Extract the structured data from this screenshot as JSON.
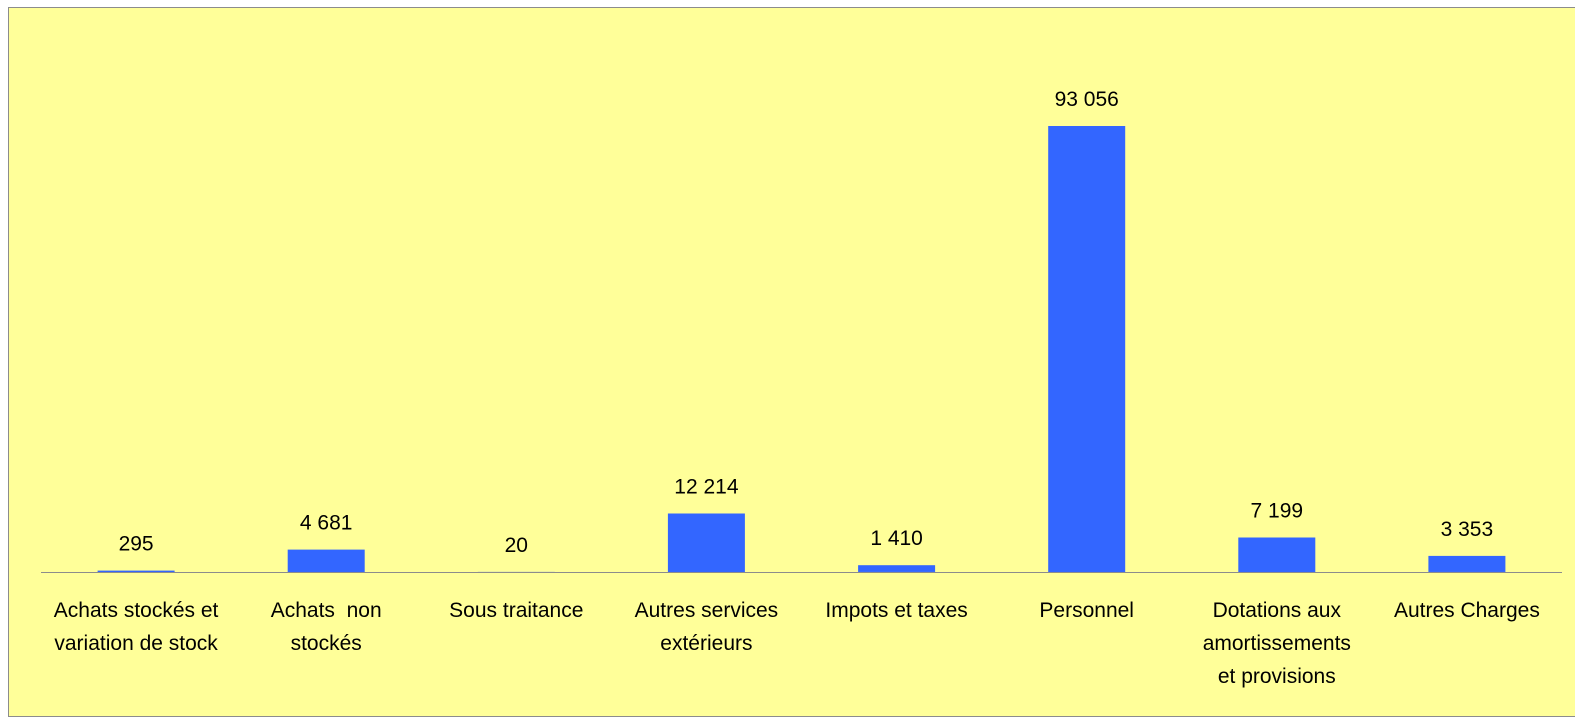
{
  "chart_data": {
    "type": "bar",
    "categories": [
      [
        "Achats stockés et",
        "variation de stock"
      ],
      [
        "Achats  non",
        "stockés"
      ],
      [
        "Sous traitance"
      ],
      [
        "Autres services",
        "extérieurs"
      ],
      [
        "Impots et taxes"
      ],
      [
        "Personnel"
      ],
      [
        "Dotations aux",
        "amortissements",
        "et provisions"
      ],
      [
        "Autres Charges"
      ]
    ],
    "values": [
      295,
      4681,
      20,
      12214,
      1410,
      93056,
      7199,
      3353
    ],
    "value_labels": [
      "295",
      "4 681",
      "20",
      "12 214",
      "1 410",
      "93 056",
      "7 199",
      "3 353"
    ],
    "title": "",
    "xlabel": "",
    "ylabel": "",
    "ylim": [
      0,
      93056
    ],
    "grid": false,
    "legend": "none",
    "colors": {
      "bar": "#3366ff",
      "background": "#ffff99",
      "axis": "#8c8c8c",
      "border": "#8c8c8c"
    }
  }
}
